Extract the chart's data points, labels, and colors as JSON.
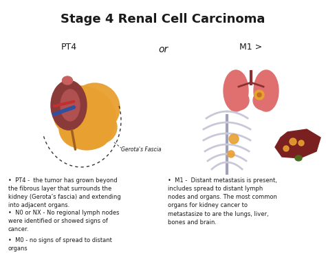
{
  "title": "Stage 4 Renal Cell Carcinoma",
  "title_fontsize": 13,
  "title_fontweight": "bold",
  "background_color": "#ffffff",
  "label_pt4": "PT4",
  "label_or": "or",
  "label_m1": "M1 >",
  "label_gerota": "Gerota's Fascia",
  "bullet_left": [
    "PT4 -  the tumor has grown beyond\nthe fibrous layer that surrounds the\nkidney (Gerota’s fascia) and extending\ninto adjacent organs.",
    "N0 or NX - No regional lymph nodes\nwere identified or showed signs of\ncancer.",
    "M0 - no signs of spread to distant\norgans"
  ],
  "bullet_right": [
    "M1 -  Distant metastasis is present,\nincludes spread to distant lymph\nnodes and organs. The most common\norgans for kidney cancer to\nmetastasize to are the lungs, liver,\nbones and brain."
  ],
  "font_color": "#1a1a1a",
  "bullet_fontsize": 6.0,
  "label_fontsize": 9,
  "or_fontsize": 10,
  "kidney_color": "#8B3A3A",
  "tumor_color": "#E8A030",
  "lung_color": "#E07070",
  "liver_color": "#7B2020",
  "rib_color": "#C8C8D8",
  "spot_color": "#E8A030",
  "vessel_blue": "#3050A0",
  "vessel_red": "#C03030"
}
